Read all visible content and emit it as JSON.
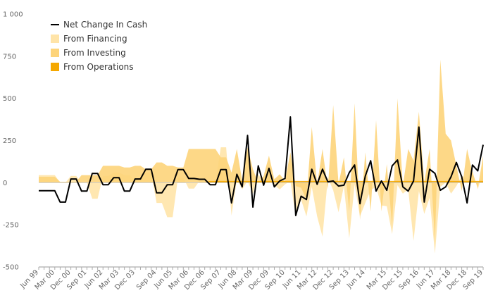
{
  "chart_data": {
    "type": "area",
    "x_tick_labels": [
      "Jun 99",
      "Mar 00",
      "Dec 00",
      "Sep 01",
      "Jun 02",
      "Mar 03",
      "Dec 03",
      "Sep 04",
      "Jun 05",
      "Mar 06",
      "Dec 06",
      "Sep 07",
      "Jun 08",
      "Mar 09",
      "Dec 09",
      "Sep 10",
      "Jun 11",
      "Mar 12",
      "Dec 12",
      "Sep 13",
      "Jun 14",
      "Mar 15",
      "Dec 15",
      "Sep 16",
      "Jun 17",
      "Mar 18",
      "Dec 18",
      "Sep 19"
    ],
    "y_tick_labels": [
      "1 000",
      "750",
      "500",
      "250",
      "0",
      "-250",
      "-500"
    ],
    "y_ticks": [
      1000,
      750,
      500,
      250,
      0,
      -250,
      -500
    ],
    "ylim": [
      -500,
      1000
    ],
    "grid": false,
    "legend_position": "top-left",
    "series": [
      {
        "name": "Net Change In Cash",
        "kind": "line",
        "color": "#000000",
        "values": [
          -48,
          -48,
          -48,
          -48,
          -115,
          -115,
          22,
          22,
          -50,
          -50,
          55,
          55,
          -12,
          -12,
          30,
          30,
          -50,
          -50,
          22,
          22,
          80,
          80,
          -60,
          -60,
          -12,
          -12,
          78,
          78,
          25,
          25,
          20,
          20,
          -12,
          -12,
          78,
          78,
          -120,
          50,
          -25,
          280,
          -145,
          100,
          -15,
          85,
          -25,
          10,
          25,
          390,
          -195,
          -80,
          -100,
          80,
          -10,
          80,
          5,
          10,
          -20,
          -15,
          60,
          105,
          -125,
          40,
          130,
          -50,
          10,
          -45,
          100,
          135,
          -25,
          -50,
          10,
          330,
          -115,
          80,
          55,
          -45,
          -25,
          35,
          120,
          35,
          -120,
          105,
          70,
          225
        ]
      },
      {
        "name": "From Financing",
        "kind": "area",
        "color": "#FFE4A8",
        "values": [
          45,
          45,
          45,
          45,
          0,
          0,
          40,
          40,
          0,
          0,
          -95,
          -95,
          40,
          40,
          60,
          60,
          45,
          45,
          15,
          15,
          60,
          60,
          -120,
          -120,
          -205,
          -205,
          30,
          30,
          -35,
          -35,
          10,
          10,
          0,
          0,
          210,
          210,
          -195,
          20,
          -40,
          10,
          -65,
          50,
          0,
          50,
          -15,
          -40,
          -10,
          10,
          -200,
          -100,
          -200,
          -25,
          -200,
          -320,
          30,
          -45,
          -175,
          -20,
          -330,
          -10,
          -200,
          -120,
          -45,
          -25,
          -135,
          -140,
          -305,
          -15,
          -65,
          -40,
          -345,
          -50,
          -185,
          -90,
          -420,
          -25,
          0,
          -65,
          -20,
          40,
          25,
          70,
          -40,
          70
        ]
      },
      {
        "name": "From Investing",
        "kind": "area",
        "color": "#FDD47A",
        "values": [
          35,
          35,
          35,
          35,
          5,
          5,
          5,
          5,
          45,
          45,
          45,
          45,
          100,
          100,
          100,
          100,
          90,
          90,
          100,
          100,
          80,
          80,
          120,
          120,
          100,
          100,
          90,
          90,
          200,
          200,
          200,
          200,
          200,
          200,
          150,
          150,
          60,
          200,
          10,
          210,
          80,
          0,
          40,
          160,
          20,
          50,
          10,
          180,
          -20,
          -30,
          -100,
          330,
          -10,
          200,
          -40,
          460,
          -10,
          150,
          -170,
          470,
          -220,
          180,
          -170,
          370,
          -170,
          110,
          -260,
          500,
          -20,
          200,
          130,
          420,
          0,
          200,
          -350,
          730,
          290,
          250,
          100,
          -50,
          200,
          60,
          -30,
          160
        ]
      },
      {
        "name": "From Operations",
        "kind": "area",
        "color": "#F5A800",
        "values": [
          0,
          0,
          0,
          0,
          0,
          0,
          0,
          0,
          0,
          0,
          0,
          0,
          0,
          0,
          0,
          0,
          0,
          0,
          0,
          0,
          0,
          0,
          0,
          0,
          0,
          0,
          0,
          0,
          0,
          0,
          0,
          0,
          10,
          10,
          10,
          10,
          10,
          10,
          10,
          10,
          10,
          10,
          10,
          10,
          10,
          10,
          10,
          10,
          10,
          10,
          10,
          10,
          10,
          10,
          10,
          10,
          10,
          10,
          10,
          10,
          10,
          10,
          10,
          10,
          10,
          10,
          10,
          10,
          10,
          10,
          10,
          10,
          10,
          10,
          10,
          10,
          10,
          10,
          10,
          10,
          10,
          10,
          10,
          10
        ]
      }
    ]
  }
}
